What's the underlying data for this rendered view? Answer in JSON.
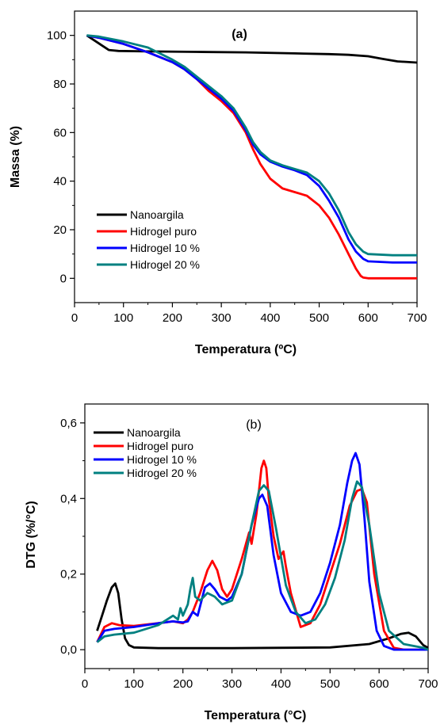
{
  "chart_data": [
    {
      "type": "line",
      "panel_label": "(a)",
      "xlabel": "Temperatura (ºC)",
      "ylabel": "Massa (%)",
      "xlim": [
        0,
        700
      ],
      "ylim": [
        -10,
        110
      ],
      "xticks": [
        0,
        100,
        200,
        300,
        400,
        500,
        600,
        700
      ],
      "yticks": [
        0,
        20,
        40,
        60,
        80,
        100
      ],
      "xtick_labels": [
        "0",
        "100",
        "200",
        "300",
        "400",
        "500",
        "600",
        "700"
      ],
      "ytick_labels": [
        "0",
        "20",
        "40",
        "60",
        "80",
        "100"
      ],
      "grid": false,
      "legend_position": "bottom-left",
      "series": [
        {
          "name": "Nanoargila",
          "color": "#000000",
          "x": [
            25,
            40,
            55,
            70,
            90,
            150,
            250,
            350,
            450,
            520,
            560,
            600,
            630,
            660,
            700
          ],
          "y": [
            100,
            98,
            96,
            94,
            93.6,
            93.4,
            93.2,
            93,
            92.6,
            92.3,
            92,
            91.4,
            90.3,
            89.3,
            88.8
          ]
        },
        {
          "name": "Hidrogel puro",
          "color": "#ff0000",
          "x": [
            25,
            50,
            100,
            150,
            200,
            225,
            250,
            275,
            300,
            325,
            350,
            365,
            380,
            400,
            425,
            450,
            475,
            500,
            520,
            540,
            560,
            575,
            585,
            590,
            600,
            650,
            700
          ],
          "y": [
            100,
            99,
            96.5,
            93,
            89,
            86,
            82,
            77,
            73,
            68,
            60,
            53,
            47,
            41,
            37,
            35.5,
            34,
            30,
            25,
            18,
            10,
            4,
            1,
            0.3,
            0,
            0,
            0
          ]
        },
        {
          "name": "Hidrogel 10 %",
          "color": "#0000ff",
          "x": [
            25,
            50,
            100,
            150,
            200,
            225,
            250,
            275,
            300,
            325,
            350,
            365,
            380,
            400,
            425,
            450,
            475,
            500,
            520,
            540,
            560,
            575,
            590,
            600,
            650,
            700
          ],
          "y": [
            100,
            99,
            96.5,
            93,
            89,
            86,
            82,
            78,
            74,
            69,
            61,
            55,
            51,
            48,
            46,
            44.5,
            42.5,
            38,
            32,
            25,
            16,
            11,
            8,
            7,
            6.5,
            6.5
          ]
        },
        {
          "name": "Hidrogel 20 %",
          "color": "#008080",
          "x": [
            25,
            50,
            100,
            150,
            200,
            225,
            250,
            275,
            300,
            325,
            350,
            365,
            380,
            400,
            425,
            450,
            475,
            500,
            520,
            540,
            560,
            575,
            590,
            600,
            650,
            700
          ],
          "y": [
            100,
            99.5,
            97.5,
            95,
            90,
            87,
            83,
            79,
            75,
            70,
            62,
            56,
            52,
            48.5,
            46.5,
            45,
            43.5,
            40,
            35,
            28,
            19,
            14,
            11,
            10,
            9.5,
            9.5
          ]
        }
      ],
      "legend": [
        "Nanoargila",
        "Hidrogel puro",
        "Hidrogel 10 %",
        "Hidrogel 20 %"
      ]
    },
    {
      "type": "line",
      "panel_label": "(b)",
      "xlabel": "Temperatura (°C)",
      "ylabel": "DTG (%/°C)",
      "xlim": [
        0,
        700
      ],
      "ylim": [
        -0.05,
        0.65
      ],
      "xticks": [
        0,
        100,
        200,
        300,
        400,
        500,
        600,
        700
      ],
      "yticks": [
        0.0,
        0.2,
        0.4,
        0.6
      ],
      "xtick_labels": [
        "0",
        "100",
        "200",
        "300",
        "400",
        "500",
        "600",
        "700"
      ],
      "ytick_labels": [
        "0,0",
        "0,2",
        "0,4",
        "0,6"
      ],
      "grid": false,
      "legend_position": "top-left",
      "series": [
        {
          "name": "Nanoargila",
          "color": "#000000",
          "x": [
            25,
            35,
            45,
            55,
            62,
            68,
            75,
            82,
            90,
            100,
            150,
            300,
            500,
            580,
            620,
            645,
            660,
            675,
            690,
            700
          ],
          "y": [
            0.05,
            0.09,
            0.13,
            0.165,
            0.175,
            0.15,
            0.08,
            0.03,
            0.012,
            0.006,
            0.004,
            0.004,
            0.006,
            0.015,
            0.03,
            0.042,
            0.045,
            0.035,
            0.012,
            0.005
          ]
        },
        {
          "name": "Hidrogel puro",
          "color": "#ff0000",
          "x": [
            25,
            40,
            55,
            70,
            100,
            150,
            180,
            200,
            210,
            220,
            235,
            250,
            260,
            270,
            280,
            290,
            300,
            320,
            335,
            340,
            350,
            360,
            365,
            370,
            375,
            385,
            395,
            405,
            410,
            420,
            440,
            460,
            480,
            500,
            520,
            540,
            555,
            565,
            575,
            590,
            610,
            630,
            650,
            700
          ],
          "y": [
            0.02,
            0.06,
            0.07,
            0.065,
            0.063,
            0.07,
            0.075,
            0.07,
            0.08,
            0.1,
            0.15,
            0.21,
            0.235,
            0.21,
            0.16,
            0.14,
            0.16,
            0.24,
            0.31,
            0.28,
            0.36,
            0.48,
            0.5,
            0.48,
            0.4,
            0.3,
            0.24,
            0.26,
            0.22,
            0.15,
            0.06,
            0.07,
            0.12,
            0.2,
            0.28,
            0.38,
            0.42,
            0.425,
            0.39,
            0.2,
            0.05,
            0.005,
            0.0,
            0.0
          ]
        },
        {
          "name": "Hidrogel 10 %",
          "color": "#0000ff",
          "x": [
            25,
            40,
            60,
            100,
            150,
            180,
            200,
            210,
            220,
            230,
            245,
            255,
            265,
            275,
            290,
            300,
            320,
            340,
            355,
            362,
            372,
            385,
            400,
            420,
            440,
            460,
            480,
            500,
            520,
            535,
            545,
            552,
            560,
            570,
            580,
            595,
            610,
            630,
            700
          ],
          "y": [
            0.02,
            0.05,
            0.055,
            0.06,
            0.07,
            0.075,
            0.072,
            0.075,
            0.1,
            0.09,
            0.165,
            0.175,
            0.16,
            0.14,
            0.13,
            0.14,
            0.2,
            0.33,
            0.4,
            0.41,
            0.38,
            0.25,
            0.15,
            0.1,
            0.09,
            0.1,
            0.15,
            0.23,
            0.33,
            0.44,
            0.5,
            0.52,
            0.49,
            0.35,
            0.18,
            0.05,
            0.01,
            0.0,
            0.0
          ]
        },
        {
          "name": "Hidrogel 20 %",
          "color": "#008080",
          "x": [
            25,
            40,
            60,
            100,
            150,
            180,
            190,
            195,
            200,
            210,
            215,
            220,
            225,
            235,
            250,
            265,
            280,
            300,
            320,
            340,
            355,
            365,
            375,
            390,
            410,
            430,
            450,
            470,
            490,
            510,
            530,
            545,
            555,
            565,
            580,
            600,
            620,
            650,
            690,
            700
          ],
          "y": [
            0.02,
            0.035,
            0.04,
            0.045,
            0.065,
            0.09,
            0.08,
            0.11,
            0.09,
            0.12,
            0.16,
            0.19,
            0.14,
            0.13,
            0.15,
            0.14,
            0.12,
            0.13,
            0.2,
            0.33,
            0.42,
            0.435,
            0.42,
            0.32,
            0.17,
            0.1,
            0.07,
            0.08,
            0.12,
            0.19,
            0.29,
            0.4,
            0.445,
            0.43,
            0.33,
            0.15,
            0.05,
            0.015,
            0.005,
            0.0
          ]
        }
      ],
      "legend": [
        "Nanoargila",
        "Hidrogel puro",
        "Hidrogel 10 %",
        "Hidrogel 20 %"
      ]
    }
  ]
}
